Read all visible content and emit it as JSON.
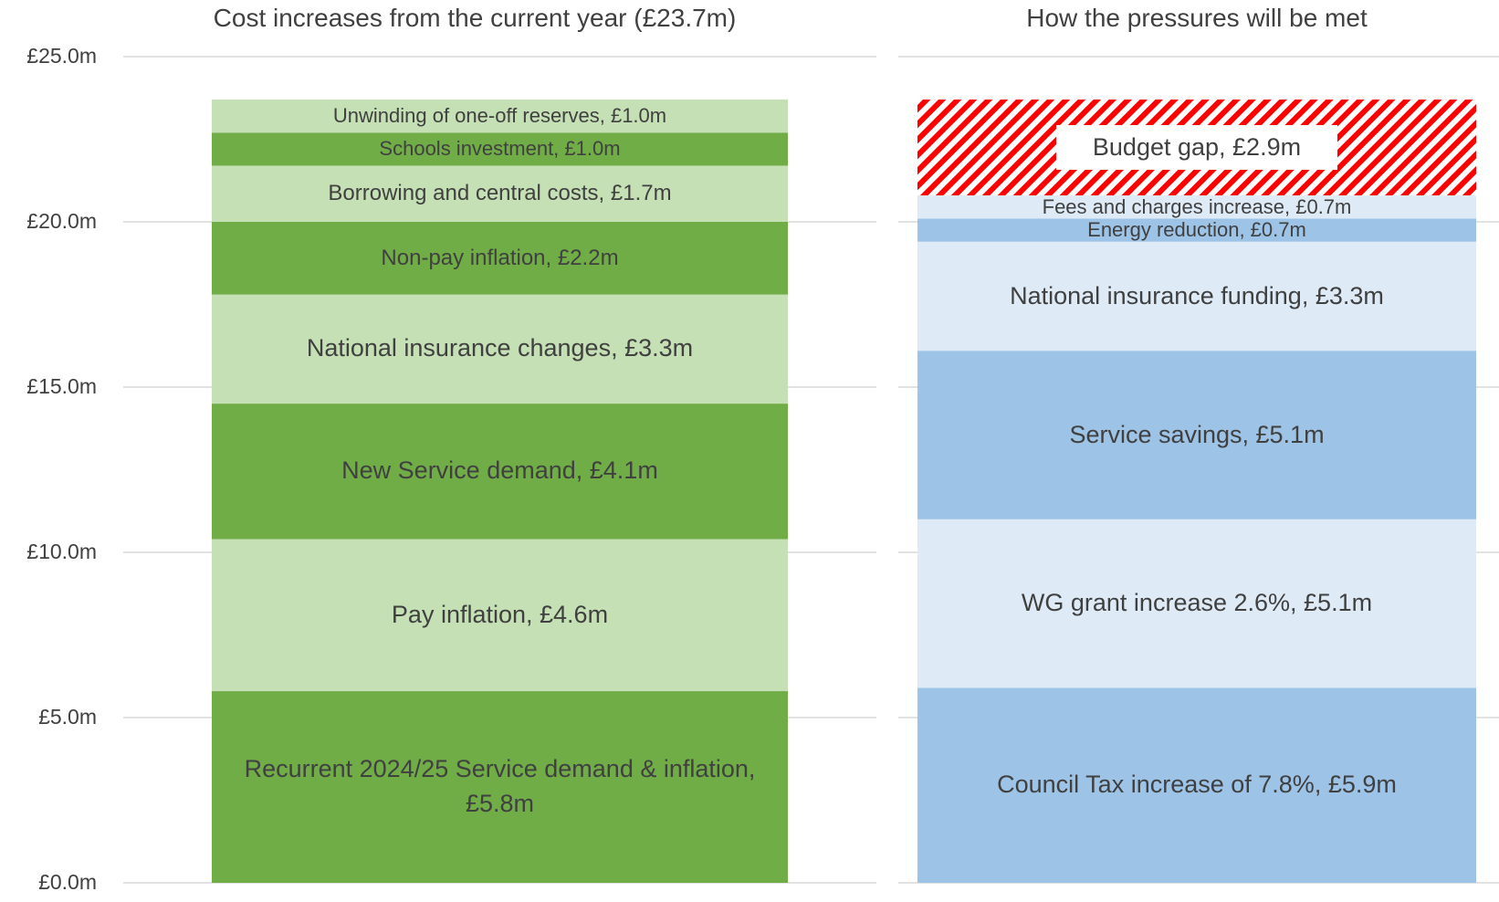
{
  "chart_data": {
    "type": "stacked_bar",
    "ylim": [
      0,
      25
    ],
    "yticks": [
      {
        "value": 0,
        "label": "£0.0m"
      },
      {
        "value": 5,
        "label": "£5.0m"
      },
      {
        "value": 10,
        "label": "£10.0m"
      },
      {
        "value": 15,
        "label": "£15.0m"
      },
      {
        "value": 20,
        "label": "£20.0m"
      },
      {
        "value": 25,
        "label": "£25.0m"
      }
    ],
    "grid": true,
    "panels": [
      {
        "title": "Cost increases from the current year (£23.7m)",
        "series": [
          {
            "color": "#70ad47",
            "values": [
              5.8
            ],
            "value_labels": [
              "Recurrent 2024/25 Service demand & inflation, £5.8m"
            ]
          },
          {
            "color": "#c5e0b4",
            "values": [
              4.6
            ],
            "value_labels": [
              "Pay inflation, £4.6m"
            ]
          },
          {
            "color": "#70ad47",
            "values": [
              4.1
            ],
            "value_labels": [
              "New Service demand, £4.1m"
            ]
          },
          {
            "color": "#c5e0b4",
            "values": [
              3.3
            ],
            "value_labels": [
              "National insurance changes, £3.3m"
            ]
          },
          {
            "color": "#70ad47",
            "values": [
              2.2
            ],
            "value_labels": [
              "Non-pay inflation, £2.2m"
            ]
          },
          {
            "color": "#c5e0b4",
            "values": [
              1.7
            ],
            "value_labels": [
              "Borrowing and central costs, £1.7m"
            ]
          },
          {
            "color": "#70ad47",
            "values": [
              1.0
            ],
            "value_labels": [
              "Schools investment, £1.0m"
            ]
          },
          {
            "color": "#c5e0b4",
            "values": [
              1.0
            ],
            "value_labels": [
              "Unwinding of one-off reserves, £1.0m"
            ]
          }
        ]
      },
      {
        "title": "How the pressures will be met",
        "series": [
          {
            "color": "#9dc3e6",
            "values": [
              5.9
            ],
            "value_labels": [
              "Council Tax increase of 7.8%, £5.9m"
            ]
          },
          {
            "color": "#deebf7",
            "values": [
              5.1
            ],
            "value_labels": [
              "WG grant increase 2.6%, £5.1m"
            ]
          },
          {
            "color": "#9dc3e6",
            "values": [
              5.1
            ],
            "value_labels": [
              "Service savings, £5.1m"
            ]
          },
          {
            "color": "#deebf7",
            "values": [
              3.3
            ],
            "value_labels": [
              "National insurance funding, £3.3m"
            ]
          },
          {
            "color": "#9dc3e6",
            "values": [
              0.7
            ],
            "value_labels": [
              "Energy reduction, £0.7m"
            ]
          },
          {
            "color": "#deebf7",
            "values": [
              0.7
            ],
            "value_labels": [
              "Fees and charges increase, £0.7m"
            ]
          },
          {
            "color": "#ff0000",
            "pattern": "hatch",
            "values": [
              2.9
            ],
            "value_labels": [
              "Budget gap, £2.9m"
            ]
          }
        ]
      }
    ]
  }
}
